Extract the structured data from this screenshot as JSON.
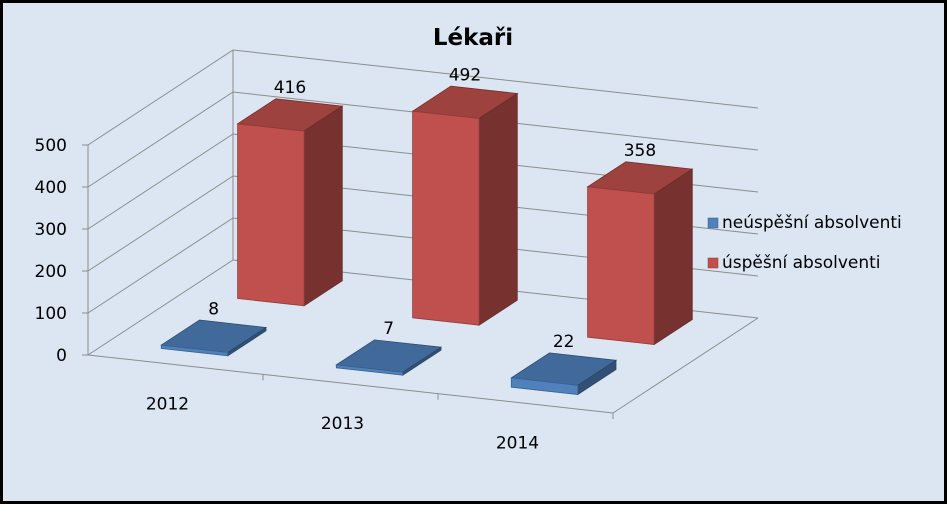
{
  "chart_data": {
    "type": "bar",
    "title": "Lékaři",
    "categories": [
      "2012",
      "2013",
      "2014"
    ],
    "series": [
      {
        "name": "neúspěšní absolventi",
        "values": [
          8,
          7,
          22
        ],
        "color": "#4F81BD"
      },
      {
        "name": "úspěšní absolventi",
        "values": [
          416,
          492,
          358
        ],
        "color": "#C0504D"
      }
    ],
    "y_ticks": [
      "0",
      "100",
      "200",
      "300",
      "400",
      "500"
    ],
    "ylim": [
      0,
      500
    ],
    "grid": true,
    "legend_position": "right",
    "style": "3d",
    "background_color": "#DCE6F2"
  }
}
